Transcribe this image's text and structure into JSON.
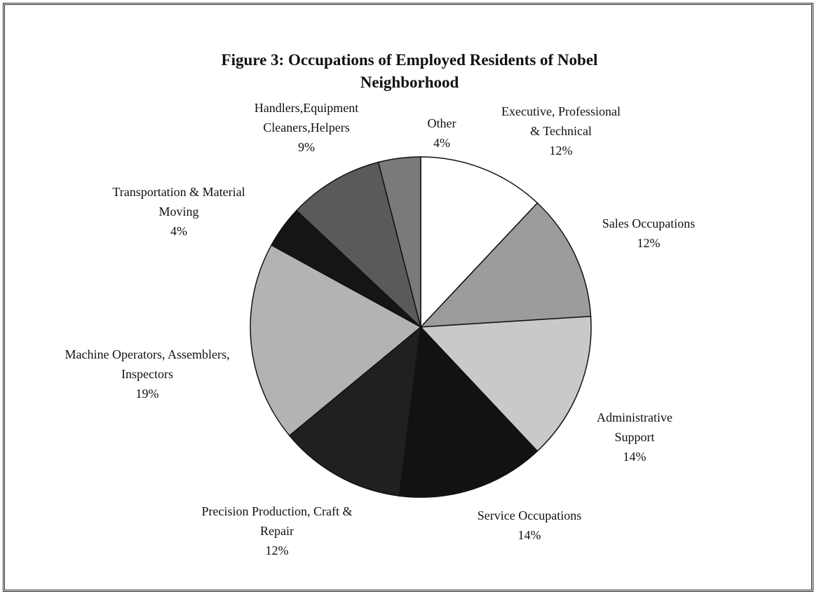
{
  "chart_data": {
    "type": "pie",
    "title": "Figure 3: Occupations of Employed Residents of Nobel Neighborhood",
    "categories": [
      "Executive, Professional & Technical",
      "Sales Occupations",
      "Administrative Support",
      "Service Occupations",
      "Precision Production, Craft & Repair",
      "Machine Operators, Assemblers, Inspectors",
      "Transportation & Material Moving",
      "Handlers,Equipment Cleaners,Helpers",
      "Other"
    ],
    "values": [
      12,
      12,
      14,
      14,
      12,
      19,
      4,
      9,
      4
    ],
    "value_labels": [
      "12%",
      "12%",
      "14%",
      "14%",
      "12%",
      "19%",
      "4%",
      "9%",
      "4%"
    ],
    "colors": [
      "#ffffff",
      "#9c9c9c",
      "#c9c9c9",
      "#121212",
      "#202020",
      "#b3b3b3",
      "#151515",
      "#5a5a5a",
      "#7a7a7a"
    ]
  }
}
